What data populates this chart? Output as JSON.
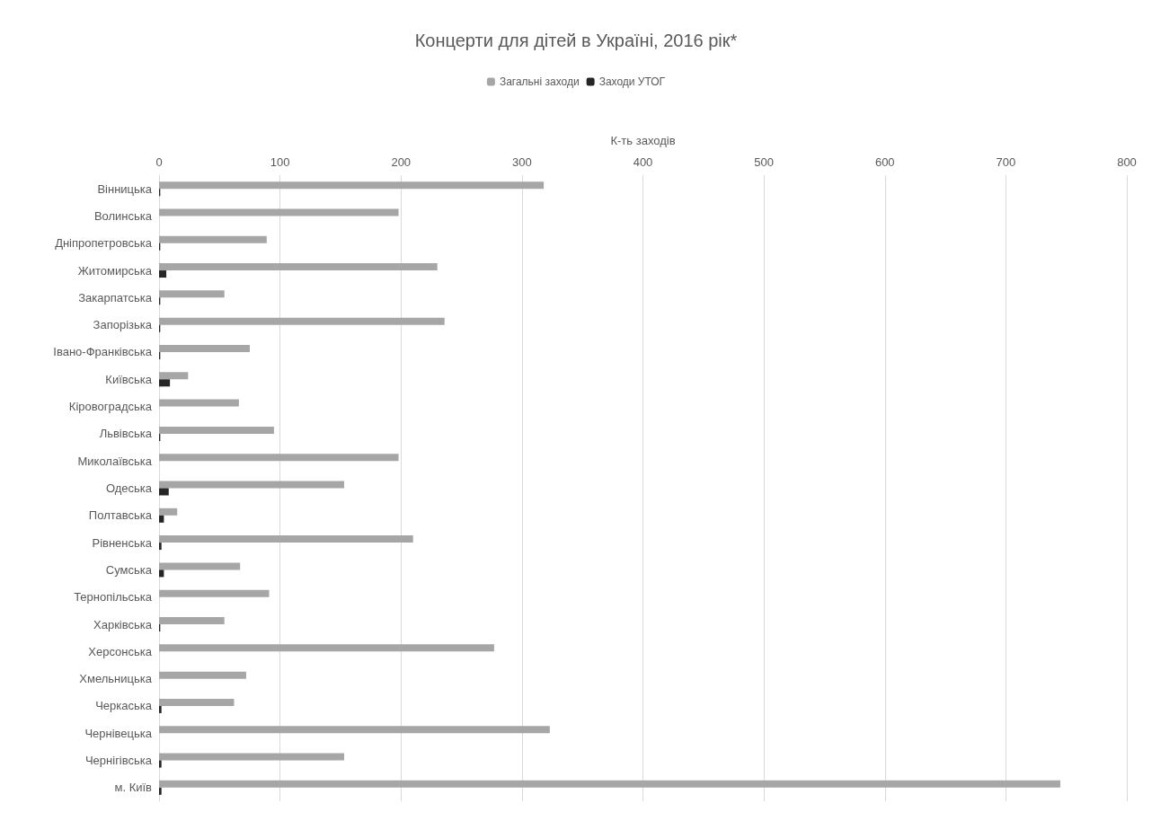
{
  "chart_data": {
    "type": "bar",
    "orientation": "horizontal",
    "title": "Концерти для дітей в Україні, 2016 рік*",
    "xlabel": "К-ть заходів",
    "categories": [
      "Вінницька",
      "Волинська",
      "Дніпропетровська",
      "Житомирська",
      "Закарпатська",
      "Запорізька",
      "Івано-Франківська",
      "Київська",
      "Кіровоградська",
      "Львівська",
      "Миколаївська",
      "Одеська",
      "Полтавська",
      "Рівненська",
      "Сумська",
      "Тернопільська",
      "Харківська",
      "Херсонська",
      "Хмельницька",
      "Черкаська",
      "Чернівецька",
      "Чернігівська",
      "м. Київ"
    ],
    "series": [
      {
        "name": "Загальні заходи",
        "color": "#a6a6a6",
        "values": [
          318,
          198,
          89,
          230,
          54,
          236,
          75,
          24,
          66,
          95,
          198,
          153,
          15,
          210,
          67,
          91,
          54,
          277,
          72,
          62,
          323,
          153,
          745
        ]
      },
      {
        "name": "Заходи УТОГ",
        "color": "#262626",
        "values": [
          1,
          0,
          1,
          6,
          1,
          1,
          1,
          9,
          0,
          1,
          0,
          8,
          4,
          2,
          4,
          0,
          1,
          0,
          0,
          2,
          0,
          2,
          2
        ]
      }
    ],
    "xlim": [
      0,
      800
    ],
    "xticks": [
      0,
      100,
      200,
      300,
      400,
      500,
      600,
      700,
      800
    ],
    "grid": "x",
    "legend": "top"
  }
}
